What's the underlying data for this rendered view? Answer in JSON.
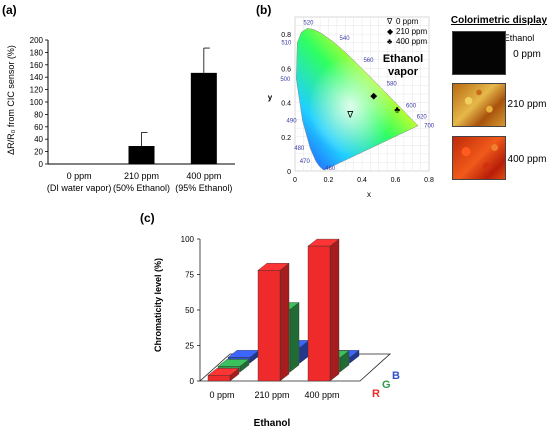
{
  "panel_labels": {
    "a": "(a)",
    "b": "(b)",
    "c": "(c)"
  },
  "chart_data": [
    {
      "type": "bar",
      "panel": "(a)",
      "ylabel": "ΔR/R₀ from CIC sensor (%)",
      "ylim": [
        0,
        200
      ],
      "yticks": [
        0,
        20,
        40,
        60,
        80,
        100,
        120,
        140,
        160,
        180,
        200
      ],
      "categories": [
        {
          "line1": "0 ppm",
          "line2": "(DI water vapor)"
        },
        {
          "line1": "210 ppm",
          "line2": "(50% Ethanol)"
        },
        {
          "line1": "400 ppm",
          "line2": "(95% Ethanol)"
        }
      ],
      "values": [
        0,
        29,
        147
      ],
      "errors": [
        0,
        22,
        40
      ],
      "bar_color": "#000000"
    },
    {
      "type": "scatter",
      "panel": "(b)",
      "xlabel": "x",
      "ylabel": "y",
      "xlim": [
        0,
        0.8
      ],
      "ylim": [
        0,
        0.9
      ],
      "xticks": [
        0,
        0.2,
        0.4,
        0.6,
        0.8
      ],
      "yticks": [
        0,
        0.2,
        0.4,
        0.6,
        0.8
      ],
      "wavelength_labels": [
        "460",
        "470",
        "480",
        "490",
        "500",
        "510",
        "520",
        "540",
        "560",
        "580",
        "600",
        "620",
        "700"
      ],
      "annotation": [
        "Ethanol",
        "vapor"
      ],
      "legend": [
        {
          "symbol": "∇",
          "label": "0 ppm"
        },
        {
          "symbol": "◆",
          "label": "210 ppm"
        },
        {
          "symbol": "♣",
          "label": "400 ppm"
        }
      ],
      "points": [
        {
          "label": "0 ppm",
          "x": 0.33,
          "y": 0.33
        },
        {
          "label": "210 ppm",
          "x": 0.47,
          "y": 0.44
        },
        {
          "label": "400 ppm",
          "x": 0.61,
          "y": 0.36
        }
      ]
    },
    {
      "type": "bar",
      "panel": "(c)",
      "ylabel": "Chromaticity level (%)",
      "xlabel": "Ethanol",
      "ylim": [
        0,
        100
      ],
      "yticks": [
        0,
        25,
        50,
        75,
        100
      ],
      "categories": [
        "0 ppm",
        "210 ppm",
        "400 ppm"
      ],
      "series": [
        {
          "name": "R",
          "color": "#ee2a2a",
          "values": [
            4,
            78,
            95
          ]
        },
        {
          "name": "G",
          "color": "#2e9a4a",
          "values": [
            4,
            44,
            10
          ]
        },
        {
          "name": "B",
          "color": "#3050cc",
          "values": [
            4,
            11,
            4
          ]
        }
      ]
    }
  ],
  "colorimetric": {
    "title": "Colorimetric display",
    "subtitle": "Ethanol",
    "labels": [
      "0 ppm",
      "210 ppm",
      "400 ppm"
    ]
  }
}
